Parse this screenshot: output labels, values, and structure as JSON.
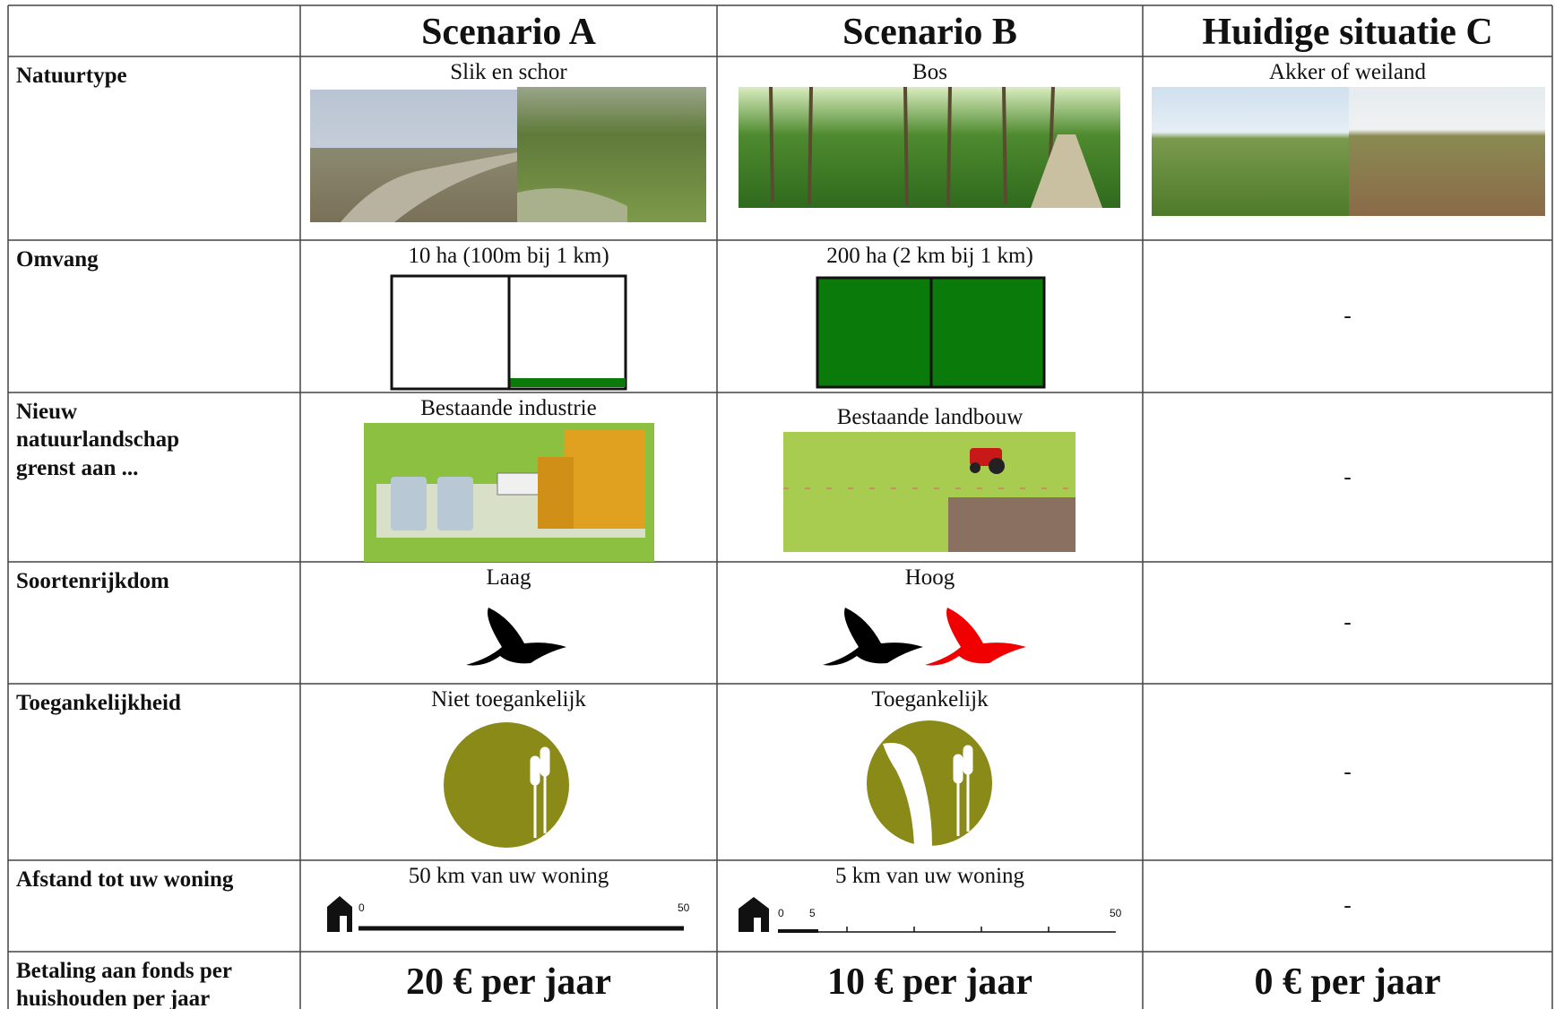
{
  "table": {
    "columns": [
      "Scenario A",
      "Scenario B",
      "Huidige situatie C"
    ],
    "rows": [
      {
        "label": "Natuurtype",
        "cells": [
          "Slik en schor",
          "Bos",
          "Akker of weiland"
        ]
      },
      {
        "label": "Omvang",
        "cells": [
          "10 ha (100m bij 1 km)",
          "200 ha (2 km bij 1 km)",
          "-"
        ]
      },
      {
        "label": "Nieuw natuurlandschap grenst aan ...",
        "cells": [
          "Bestaande industrie",
          "Bestaande landbouw",
          "-"
        ]
      },
      {
        "label": "Soortenrijkdom",
        "cells": [
          "Laag",
          "Hoog",
          "-"
        ]
      },
      {
        "label": "Toegankelijkheid",
        "cells": [
          "Niet toegankelijk",
          "Toegankelijk",
          "-"
        ]
      },
      {
        "label": "Afstand tot uw woning",
        "cells": [
          "50 km van uw woning",
          "5 km van uw woning",
          "-"
        ]
      },
      {
        "label": "Betaling aan fonds per huishouden per jaar",
        "cells": [
          "20 € per jaar",
          "10 € per jaar",
          "0 € per jaar"
        ]
      }
    ],
    "distance_scales": [
      {
        "labels": [
          "0",
          "50"
        ]
      },
      {
        "labels": [
          "0",
          "5",
          "50"
        ]
      }
    ]
  }
}
